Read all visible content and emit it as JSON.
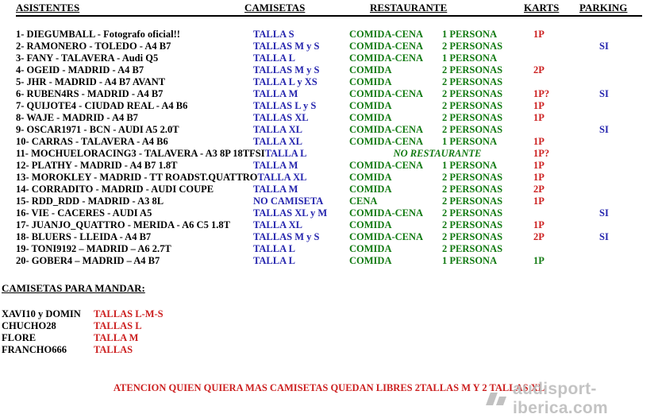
{
  "colors": {
    "blue": "#2626ae",
    "green": "#127a12",
    "red": "#cc2020",
    "black": "#000000",
    "watermark_gray": "#bdbdbd"
  },
  "header": {
    "asistentes": "ASISTENTES",
    "camisetas": "CAMISETAS",
    "restaurante": "RESTAURANTE",
    "karts": "KARTS",
    "parking": "PARKING"
  },
  "attendees": [
    {
      "name": "1- DIEGUMBALL - Fotografo oficial!!",
      "shirt": "TALLA S",
      "meal": "COMIDA-CENA",
      "persons": "1 PERSONA",
      "karts": "1P",
      "parking": ""
    },
    {
      "name": "2- RAMONERO - TOLEDO - A4 B7",
      "shirt": "TALLAS M y S",
      "meal": "COMIDA-CENA",
      "persons": "2 PERSONAS",
      "karts": "",
      "parking": "SI"
    },
    {
      "name": "3- FANY - TALAVERA - Audi Q5",
      "shirt": "TALLA L",
      "meal": "COMIDA-CENA",
      "persons": "1 PERSONA",
      "karts": "",
      "parking": ""
    },
    {
      "name": "4- OGEID - MADRID - A4 B7",
      "shirt": "TALLAS M y S",
      "meal": "COMIDA",
      "persons": "2 PERSONAS",
      "karts": "2P",
      "parking": ""
    },
    {
      "name": "5- JHR - MADRID - A4 B7 AVANT",
      "shirt": "TALLA L y XS",
      "meal": "COMIDA",
      "persons": "2 PERSONAS",
      "karts": "",
      "parking": ""
    },
    {
      "name": "6- RUBEN4RS - MADRID - A4 B7",
      "shirt": "TALLA M",
      "meal": "COMIDA-CENA",
      "persons": "2 PERSONAS",
      "karts": "1P?",
      "parking": "SI"
    },
    {
      "name": "7- QUIJOTE4 - CIUDAD REAL - A4 B6",
      "shirt": "TALLAS L y S",
      "meal": "COMIDA",
      "persons": "2 PERSONAS",
      "karts": "1P",
      "parking": ""
    },
    {
      "name": "8- WAJE - MADRID - A4 B7",
      "shirt": "TALLAS XL",
      "meal": "COMIDA",
      "persons": "2 PERSONAS",
      "karts": "1P",
      "parking": ""
    },
    {
      "name": "9- OSCAR1971 - BCN - AUDI A5 2.0T",
      "shirt": "TALLA XL",
      "meal": "COMIDA-CENA",
      "persons": "2 PERSONAS",
      "karts": "",
      "parking": "SI"
    },
    {
      "name": "10- CARRAS - TALAVERA - A4 B6",
      "shirt": "TALLA XL",
      "meal": "COMIDA-CENA",
      "persons": "1 PERSONA",
      "karts": "1P",
      "parking": ""
    },
    {
      "name": "11- MOCHUELORACING3 - TALAVERA - A3 8P 18TFSI",
      "shirt": "TALLA L",
      "meal": "NO RESTAURANTE",
      "persons": "",
      "karts": "1P?",
      "parking": "",
      "no_restaurant": true
    },
    {
      "name": "12- PLATHY - MADRID - A4 B7 1.8T",
      "shirt": "TALLA M",
      "meal": "COMIDA-CENA",
      "persons": "1 PERSONA",
      "karts": "1P",
      "parking": ""
    },
    {
      "name": "13- MOROKLEY - MADRID - TT ROADST.QUATTRO",
      "shirt": "TALLA XL",
      "meal": "COMIDA",
      "persons": "2 PERSONAS",
      "karts": "1P",
      "parking": ""
    },
    {
      "name": "14- CORRADITO - MADRID - AUDI COUPE",
      "shirt": "TALLA M",
      "meal": "COMIDA",
      "persons": "2 PERSONAS",
      "karts": "2P",
      "parking": ""
    },
    {
      "name": "15- RDD_RDD - MADRID - A3 8L",
      "shirt": "NO CAMISETA",
      "meal": "CENA",
      "persons": "2 PERSONAS",
      "karts": "1P",
      "parking": ""
    },
    {
      "name": "16- VIE - CACERES - AUDI A5",
      "shirt": "TALLAS XL y M",
      "meal": "COMIDA-CENA",
      "persons": "2 PERSONAS",
      "karts": "",
      "parking": "SI"
    },
    {
      "name": "17- JUANJO_QUATTRO - MERIDA - A6 C5 1.8T",
      "shirt": "TALLA XL",
      "meal": "COMIDA",
      "persons": "2 PERSONAS",
      "karts": "1P",
      "parking": ""
    },
    {
      "name": "18- BLUERS - LLEIDA - A4 B7",
      "shirt": "TALLAS M y S",
      "meal": "COMIDA-CENA",
      "persons": "2 PERSONAS",
      "karts": "2P",
      "parking": "SI"
    },
    {
      "name": "19- TONI9192 – MADRID – A6 2.7T",
      "shirt": "TALLA L",
      "meal": "COMIDA",
      "persons": "2 PERSONAS",
      "karts": "",
      "parking": ""
    },
    {
      "name": "20- GOBER4 – MADRID – A4 B7",
      "shirt": "TALLA L",
      "meal": "COMIDA",
      "persons": "1 PERSONA",
      "karts": "1P",
      "parking": "",
      "karts_green": true
    }
  ],
  "shirts_to_send": {
    "title": "CAMISETAS PARA MANDAR:",
    "items": [
      {
        "name": "XAVI10 y DOMIN",
        "shirt": "TALLAS L-M-S"
      },
      {
        "name": "CHUCHO28",
        "shirt": "TALLAS L"
      },
      {
        "name": "FLORE",
        "shirt": "TALLA M"
      },
      {
        "name": "FRANCHO666",
        "shirt": "TALLAS"
      }
    ]
  },
  "notice": "ATENCION QUIEN QUIERA MAS CAMISETAS QUEDAN LIBRES 2TALLAS M Y 2 TALLAS XL",
  "watermark": "audisport-iberica.com"
}
